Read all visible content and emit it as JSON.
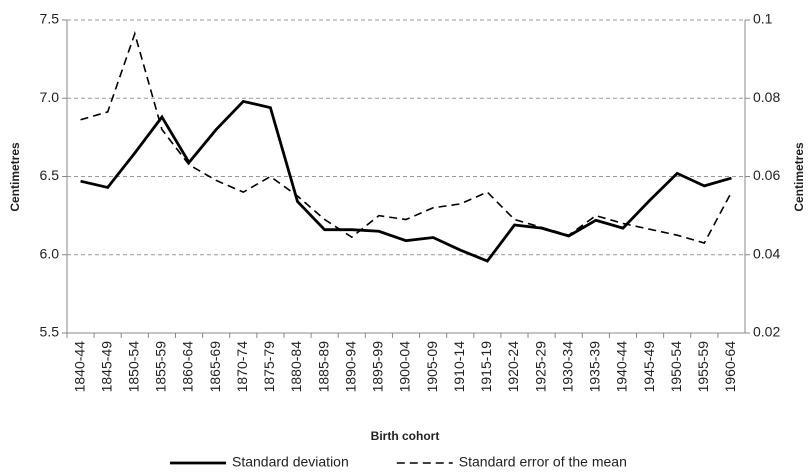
{
  "chart_data": {
    "type": "line",
    "categories": [
      "1840-44",
      "1845-49",
      "1850-54",
      "1855-59",
      "1860-64",
      "1865-69",
      "1870-74",
      "1875-79",
      "1880-84",
      "1885-89",
      "1890-94",
      "1895-99",
      "1900-04",
      "1905-09",
      "1910-14",
      "1915-19",
      "1920-24",
      "1925-29",
      "1930-34",
      "1935-39",
      "1940-44",
      "1945-49",
      "1950-54",
      "1955-59",
      "1960-64"
    ],
    "series": [
      {
        "name": "Standard deviation",
        "color": "#000000",
        "dashed": false,
        "values": [
          6.47,
          6.43,
          6.65,
          6.88,
          6.59,
          6.8,
          6.98,
          6.94,
          6.34,
          6.16,
          6.16,
          6.15,
          6.09,
          6.11,
          6.03,
          5.96,
          6.19,
          6.17,
          6.12,
          6.22,
          6.17,
          6.35,
          6.52,
          6.44,
          6.49
        ]
      },
      {
        "name": "Standard error of the mean",
        "color": "#000000",
        "dashed": true,
        "axis": "y2",
        "values": [
          0.0745,
          0.0765,
          0.0965,
          0.072,
          0.063,
          0.059,
          0.056,
          0.06,
          0.055,
          0.049,
          0.0445,
          0.05,
          0.049,
          0.052,
          0.053,
          0.056,
          0.049,
          0.047,
          0.045,
          0.05,
          0.048,
          0.0465,
          0.045,
          0.043,
          0.056
        ]
      }
    ],
    "xlabel": "Birth cohort",
    "ylabel": "Centimetres",
    "y2label": "Centimetres",
    "ylim": [
      5.5,
      7.5
    ],
    "yticks": [
      5.5,
      {
        "value": 6,
        "label": "6.0"
      },
      6.5,
      {
        "value": 7,
        "label": "7.0"
      },
      7.5
    ],
    "y2lim": [
      0.02,
      0.1
    ],
    "y2ticks": [
      0.02,
      0.04,
      0.06,
      0.08,
      0.1
    ],
    "grid": true
  }
}
